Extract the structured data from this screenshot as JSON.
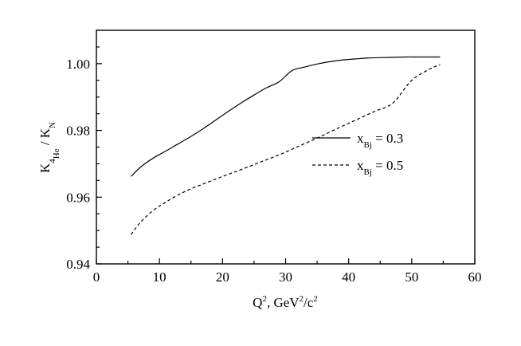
{
  "chart_data": {
    "type": "line",
    "title": "",
    "xlabel": {
      "base": "Q",
      "sup": "2",
      "rest1": ", GeV",
      "sup2": "2",
      "rest2": "/c",
      "sup3": "2"
    },
    "ylabel": {
      "k1": "K",
      "sub1": "4",
      "subsub1": "He",
      "sep": " / K",
      "sub2": "N"
    },
    "xlim": [
      0,
      60
    ],
    "ylim": [
      0.94,
      1.01
    ],
    "xticks": [
      0,
      10,
      20,
      30,
      40,
      50,
      60
    ],
    "xtick_labels": [
      "0",
      "10",
      "20",
      "30",
      "40",
      "50",
      "60"
    ],
    "yticks": [
      0.94,
      0.96,
      0.98,
      1.0
    ],
    "ytick_labels": [
      "0.94",
      "0.96",
      "0.98",
      "1.00"
    ],
    "grid": false,
    "legend_position": "center-right",
    "series": [
      {
        "name": "x_Bj = 0.3",
        "label": {
          "x": "x",
          "sub": "Bj",
          "rest": " = 0.3"
        },
        "style": "solid",
        "x": [
          5.5,
          7,
          9,
          11,
          13,
          15,
          17,
          19,
          21,
          23,
          25,
          27,
          29,
          31,
          33,
          35,
          37,
          39,
          41,
          43,
          45,
          47,
          49,
          51,
          53,
          54.5
        ],
        "y": [
          0.9662,
          0.969,
          0.9717,
          0.9738,
          0.976,
          0.9782,
          0.9806,
          0.9832,
          0.9858,
          0.9883,
          0.9906,
          0.9928,
          0.9946,
          0.9979,
          0.999,
          0.9999,
          1.0006,
          1.0011,
          1.0014,
          1.0017,
          1.0018,
          1.0019,
          1.002,
          1.002,
          1.002,
          1.002
        ]
      },
      {
        "name": "x_Bj = 0.5",
        "label": {
          "x": "x",
          "sub": "Bj",
          "rest": " = 0.5"
        },
        "style": "dashed",
        "x": [
          5.5,
          7,
          9,
          11,
          13,
          15,
          17,
          20,
          23,
          26,
          29,
          32,
          35,
          38,
          41,
          44,
          47,
          50,
          53,
          54.5
        ],
        "y": [
          0.9488,
          0.9525,
          0.956,
          0.9585,
          0.9607,
          0.9625,
          0.964,
          0.9662,
          0.9683,
          0.9705,
          0.9727,
          0.9752,
          0.9777,
          0.9804,
          0.983,
          0.9856,
          0.9882,
          0.995,
          0.9985,
          0.9997
        ]
      }
    ],
    "legend": [
      {
        "label": {
          "x": "x",
          "sub": "Bj",
          "rest": " = 0.3"
        },
        "style": "solid"
      },
      {
        "label": {
          "x": "x",
          "sub": "Bj",
          "rest": " = 0.5"
        },
        "style": "dashed"
      }
    ]
  }
}
